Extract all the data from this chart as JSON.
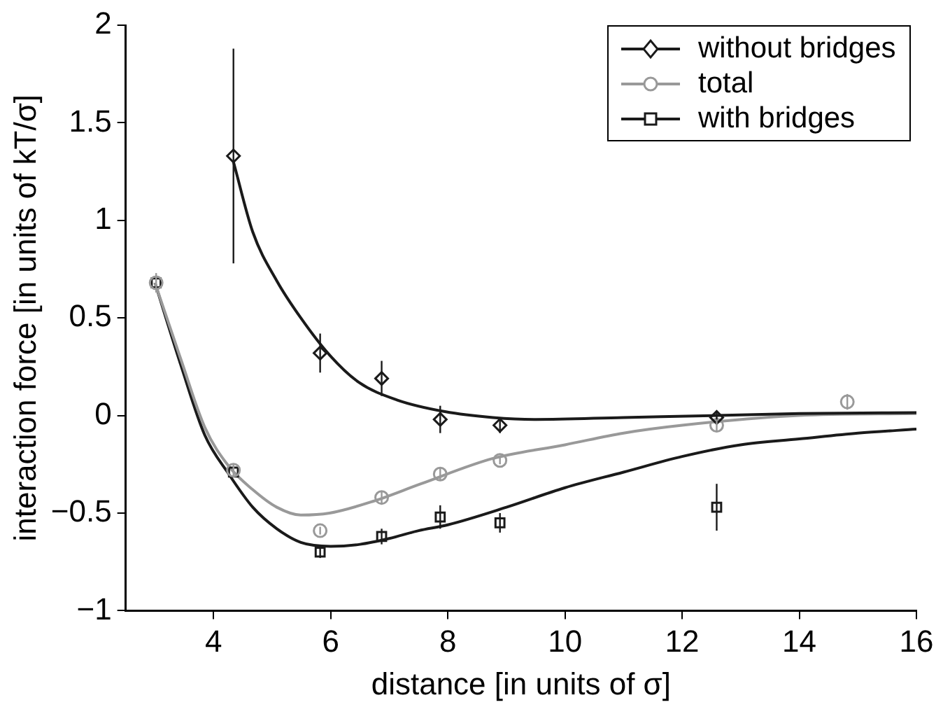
{
  "chart_data": {
    "type": "scatter",
    "xlabel": "distance [in units of σ]",
    "ylabel": "interaction force [in units of kT/σ]",
    "xlim": [
      2.5,
      16
    ],
    "xticks": [
      4,
      6,
      8,
      10,
      12,
      14,
      16
    ],
    "ylim": [
      -1,
      2
    ],
    "yticks": [
      {
        "value": -1,
        "label": "−1"
      },
      {
        "value": -0.5,
        "label": "−0.5"
      },
      0,
      0.5,
      1,
      1.5,
      2
    ],
    "legend": "top right",
    "grid": false,
    "series": [
      {
        "name": "without bridges",
        "marker": "diamond",
        "color": "#1a1a1a",
        "x": [
          4.34,
          5.82,
          6.87,
          7.87,
          8.89,
          12.59
        ],
        "values": [
          1.33,
          0.32,
          0.19,
          -0.02,
          -0.05,
          -0.01
        ],
        "errors": [
          0.55,
          0.1,
          0.09,
          0.07,
          0.04,
          0.03
        ]
      },
      {
        "name": "total",
        "marker": "circle",
        "color": "#999999",
        "x": [
          3.02,
          4.34,
          5.82,
          6.87,
          7.87,
          8.89,
          12.59,
          14.82
        ],
        "values": [
          0.68,
          -0.28,
          -0.59,
          -0.42,
          -0.3,
          -0.23,
          -0.05,
          0.07
        ],
        "errors": [
          0.05,
          0.03,
          0.02,
          0.03,
          0.03,
          0.02,
          0.03,
          0.04
        ]
      },
      {
        "name": "with bridges",
        "marker": "square",
        "color": "#1a1a1a",
        "x": [
          3.02,
          4.34,
          5.82,
          6.87,
          7.87,
          8.89,
          12.59
        ],
        "values": [
          0.68,
          -0.29,
          -0.7,
          -0.62,
          -0.52,
          -0.55,
          -0.47
        ],
        "errors": [
          null,
          null,
          0.03,
          0.04,
          0.06,
          0.05,
          0.12
        ]
      },
      {
        "type": "line",
        "marker": "none",
        "color": "#1a1a1a",
        "x": [
          4.34,
          4.67,
          5.08,
          5.49,
          5.98,
          6.48,
          7.13,
          7.95,
          8.77,
          9.5,
          11,
          12.6,
          14,
          16
        ],
        "values": [
          1.3,
          0.94,
          0.69,
          0.5,
          0.31,
          0.17,
          0.08,
          0.02,
          -0.01,
          -0.02,
          -0.01,
          0,
          0.01,
          0.015
        ]
      },
      {
        "type": "line",
        "marker": "none",
        "color": "#999999",
        "x": [
          3.0,
          3.44,
          3.85,
          4.26,
          4.67,
          5.08,
          5.49,
          5.98,
          6.72,
          7.54,
          8.77,
          10,
          11,
          12,
          14,
          16
        ],
        "values": [
          0.68,
          0.29,
          -0.06,
          -0.26,
          -0.38,
          -0.47,
          -0.51,
          -0.5,
          -0.44,
          -0.35,
          -0.22,
          -0.15,
          -0.09,
          -0.05,
          0,
          0.01
        ]
      },
      {
        "type": "line",
        "marker": "none",
        "color": "#1a1a1a",
        "x": [
          3.0,
          3.44,
          3.85,
          4.26,
          4.67,
          5.08,
          5.49,
          6.0,
          6.5,
          7.0,
          7.5,
          8.0,
          9,
          10,
          11,
          12,
          13,
          14,
          15,
          16
        ],
        "values": [
          0.68,
          0.26,
          -0.1,
          -0.3,
          -0.47,
          -0.58,
          -0.65,
          -0.67,
          -0.66,
          -0.63,
          -0.59,
          -0.56,
          -0.47,
          -0.37,
          -0.29,
          -0.21,
          -0.15,
          -0.12,
          -0.09,
          -0.07
        ]
      }
    ]
  }
}
